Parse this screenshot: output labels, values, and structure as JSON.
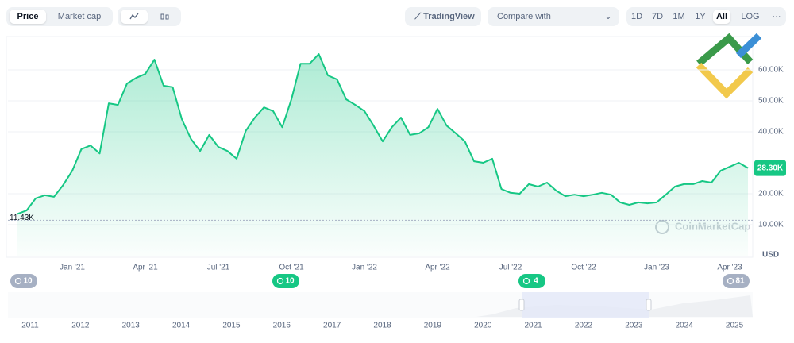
{
  "toolbar": {
    "tabs": [
      "Price",
      "Market cap"
    ],
    "trading_view": "TradingView",
    "compare": "Compare with",
    "ranges": [
      "1D",
      "7D",
      "1M",
      "1Y",
      "All"
    ],
    "log": "LOG",
    "more": "···"
  },
  "chart_data": {
    "type": "line",
    "color": "#16c784",
    "categories": [
      null,
      null,
      null,
      null,
      null,
      null,
      "Jan '21",
      null,
      null,
      null,
      null,
      null,
      null,
      null,
      "Apr '21",
      null,
      null,
      null,
      null,
      null,
      null,
      null,
      "Jul '21",
      null,
      null,
      null,
      null,
      null,
      null,
      null,
      "Oct '21",
      null,
      null,
      null,
      null,
      null,
      null,
      null,
      "Jan '22",
      null,
      null,
      null,
      null,
      null,
      null,
      null,
      "Apr '22",
      null,
      null,
      null,
      null,
      null,
      null,
      null,
      "Jul '22",
      null,
      null,
      null,
      null,
      null,
      null,
      null,
      "Oct '22",
      null,
      null,
      null,
      null,
      null,
      null,
      null,
      "Jan '23",
      null,
      null,
      null,
      null,
      null,
      null,
      null,
      "Apr '23",
      null,
      null
    ],
    "values": [
      13500,
      14600,
      18500,
      19500,
      19000,
      22800,
      27400,
      34400,
      35600,
      33000,
      49200,
      48700,
      55600,
      57400,
      58700,
      63300,
      54900,
      54400,
      44100,
      37700,
      33800,
      39000,
      35100,
      33800,
      31300,
      40300,
      44600,
      47900,
      46700,
      41500,
      50500,
      62000,
      62000,
      65100,
      58200,
      56900,
      50500,
      48700,
      46700,
      42000,
      36900,
      41500,
      44600,
      39000,
      39500,
      41500,
      47400,
      42000,
      39500,
      36900,
      30500,
      30000,
      31300,
      21500,
      20300,
      20000,
      23100,
      22300,
      23600,
      21000,
      19200,
      19700,
      19200,
      19700,
      20300,
      19700,
      17200,
      16400,
      17200,
      16900,
      17200,
      19700,
      22300,
      23100,
      23100,
      24100,
      23600,
      27400,
      28700,
      30000,
      28300
    ],
    "ylim": [
      0,
      70000
    ],
    "yticks": [
      {
        "value": 10000,
        "label": "10.00K"
      },
      {
        "value": 20000,
        "label": "20.00K"
      },
      {
        "value": 40000,
        "label": "40.00K"
      },
      {
        "value": 50000,
        "label": "50.00K"
      },
      {
        "value": 60000,
        "label": "60.00K"
      }
    ],
    "grid": true,
    "low_marker": {
      "value": 11430,
      "label": "11.43K"
    },
    "current_price": {
      "value": 28300,
      "label": "28.30K"
    },
    "unit": "USD",
    "watermark": "CoinMarketCap"
  },
  "navigator": {
    "years": [
      "2011",
      "2012",
      "2013",
      "2014",
      "2015",
      "2016",
      "2017",
      "2018",
      "2019",
      "2020",
      "2021",
      "2022",
      "2023",
      "2024",
      "2025"
    ],
    "badges": [
      "10",
      "10",
      "4",
      "81"
    ]
  }
}
